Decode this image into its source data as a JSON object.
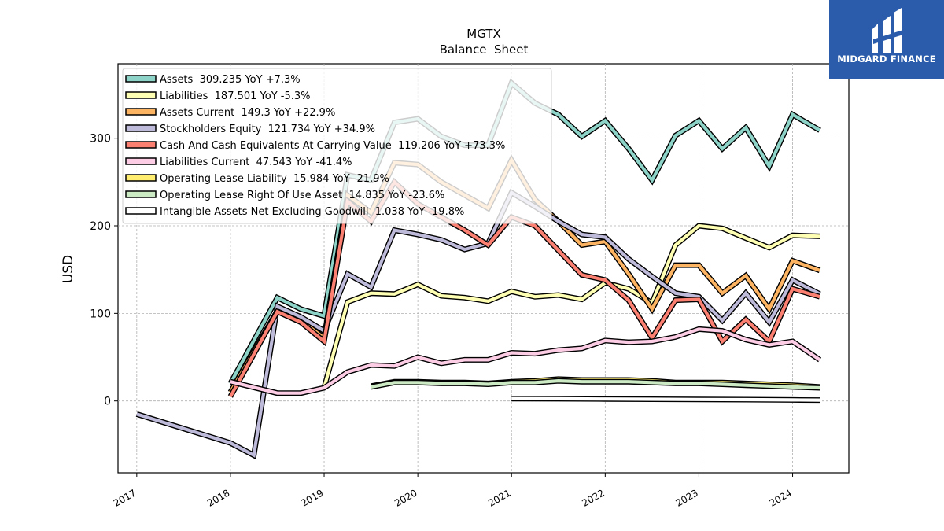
{
  "logo": {
    "text": "MIDGARD FINANCE",
    "bg_color": "#2a5cab"
  },
  "chart_data": {
    "type": "line",
    "title": "MGTX",
    "subtitle": "Balance  Sheet",
    "ylabel": "USD",
    "xlabel": "",
    "xlim": [
      2016.8,
      2024.6
    ],
    "ylim": [
      -82,
      385
    ],
    "yticks": [
      0,
      100,
      200,
      300
    ],
    "xticks": [
      2017,
      2018,
      2019,
      2020,
      2021,
      2022,
      2023,
      2024
    ],
    "grid": true,
    "legend_position": "top-left",
    "series": [
      {
        "name": "Assets",
        "legend": "Assets  309.235 YoY +7.3%",
        "color": "#8dd3c7",
        "x": [
          2018.0,
          2018.5,
          2018.75,
          2019.0,
          2019.25,
          2019.5,
          2019.75,
          2020.0,
          2020.25,
          2020.5,
          2020.75,
          2021.0,
          2021.25,
          2021.5,
          2021.75,
          2022.0,
          2022.25,
          2022.5,
          2022.75,
          2023.0,
          2023.25,
          2023.5,
          2023.75,
          2024.0,
          2024.29
        ],
        "y": [
          20,
          118,
          105,
          97,
          258,
          252,
          318,
          322,
          302,
          292,
          292,
          363,
          340,
          327,
          302,
          320,
          288,
          252,
          303,
          320,
          288,
          312,
          268,
          327,
          309
        ]
      },
      {
        "name": "Liabilities",
        "legend": "Liabilities  187.501 YoY -5.3%",
        "color": "#ffffb3",
        "x": [
          2019.0,
          2019.25,
          2019.5,
          2019.75,
          2020.0,
          2020.25,
          2020.5,
          2020.75,
          2021.0,
          2021.25,
          2021.5,
          2021.75,
          2022.0,
          2022.25,
          2022.5,
          2022.75,
          2023.0,
          2023.25,
          2023.5,
          2023.75,
          2024.0,
          2024.29
        ],
        "y": [
          15,
          113,
          123,
          122,
          133,
          120,
          118,
          114,
          125,
          119,
          121,
          116,
          135,
          128,
          112,
          178,
          200,
          197,
          186,
          175,
          189,
          188
        ]
      },
      {
        "name": "Assets Current",
        "legend": "Assets Current  149.3 YoY +22.9%",
        "color": "#fdb462",
        "x": [
          2018.0,
          2018.5,
          2018.75,
          2019.0,
          2019.25,
          2019.5,
          2019.75,
          2020.0,
          2020.25,
          2020.5,
          2020.75,
          2021.0,
          2021.25,
          2021.5,
          2021.75,
          2022.0,
          2022.25,
          2022.5,
          2022.75,
          2023.0,
          2023.25,
          2023.5,
          2023.75,
          2024.0,
          2024.29
        ],
        "y": [
          10,
          103,
          92,
          72,
          235,
          215,
          272,
          270,
          250,
          235,
          220,
          275,
          230,
          205,
          178,
          182,
          145,
          105,
          155,
          155,
          123,
          143,
          105,
          160,
          149
        ]
      },
      {
        "name": "Stockholders Equity",
        "legend": "Stockholders Equity  121.734 YoY +34.9%",
        "color": "#bebada",
        "x": [
          2017.0,
          2018.0,
          2018.25,
          2018.5,
          2018.75,
          2019.0,
          2019.25,
          2019.5,
          2019.75,
          2020.0,
          2020.25,
          2020.5,
          2020.75,
          2021.0,
          2021.25,
          2021.5,
          2021.75,
          2022.0,
          2022.25,
          2022.5,
          2022.75,
          2023.0,
          2023.25,
          2023.5,
          2023.75,
          2024.0,
          2024.29
        ],
        "y": [
          -15,
          -48,
          -62,
          108,
          96,
          80,
          145,
          130,
          195,
          190,
          184,
          173,
          180,
          238,
          222,
          205,
          190,
          187,
          162,
          142,
          123,
          119,
          92,
          123,
          90,
          138,
          122
        ]
      },
      {
        "name": "Cash And Cash Equivalents At Carrying Value",
        "legend": "Cash And Cash Equivalents At Carrying Value  119.206 YoY +73.3%",
        "color": "#fb8072",
        "x": [
          2018.0,
          2018.5,
          2018.75,
          2019.0,
          2019.25,
          2019.5,
          2019.75,
          2020.0,
          2020.25,
          2020.5,
          2020.75,
          2021.0,
          2021.25,
          2021.5,
          2021.75,
          2022.0,
          2022.25,
          2022.5,
          2022.75,
          2023.0,
          2023.25,
          2023.5,
          2023.75,
          2024.0,
          2024.29
        ],
        "y": [
          5,
          102,
          90,
          68,
          228,
          205,
          250,
          225,
          210,
          195,
          178,
          210,
          200,
          172,
          144,
          138,
          115,
          72,
          115,
          116,
          68,
          93,
          68,
          128,
          119
        ]
      },
      {
        "name": "Liabilities Current",
        "legend": "Liabilities Current  47.543 YoY -41.4%",
        "color": "#fccde5",
        "x": [
          2018.0,
          2018.5,
          2018.75,
          2019.0,
          2019.25,
          2019.5,
          2019.75,
          2020.0,
          2020.25,
          2020.5,
          2020.75,
          2021.0,
          2021.25,
          2021.5,
          2021.75,
          2022.0,
          2022.25,
          2022.5,
          2022.75,
          2023.0,
          2023.25,
          2023.5,
          2023.75,
          2024.0,
          2024.29
        ],
        "y": [
          22,
          9,
          9,
          15,
          33,
          41,
          40,
          50,
          43,
          47,
          47,
          55,
          54,
          58,
          60,
          69,
          67,
          68,
          73,
          82,
          80,
          70,
          64,
          68,
          47
        ]
      },
      {
        "name": "Operating Lease Liability",
        "legend": "Operating Lease Liability  15.984 YoY -21.9%",
        "color": "#ffed6f",
        "x": [
          2019.5,
          2019.75,
          2020.0,
          2020.25,
          2020.5,
          2020.75,
          2021.0,
          2021.25,
          2021.5,
          2021.75,
          2022.0,
          2022.25,
          2022.5,
          2022.75,
          2023.0,
          2023.25,
          2023.5,
          2023.75,
          2024.0,
          2024.29
        ],
        "y": [
          17,
          22,
          22,
          21,
          21,
          20,
          22,
          23,
          25,
          24,
          24,
          24,
          23,
          21,
          21,
          21,
          20,
          19,
          18,
          16
        ]
      },
      {
        "name": "Operating Lease Right Of Use Asset",
        "legend": "Operating Lease Right Of Use Asset  14.835 YoY -23.6%",
        "color": "#ccebc5",
        "x": [
          2019.5,
          2019.75,
          2020.0,
          2020.25,
          2020.5,
          2020.75,
          2021.0,
          2021.25,
          2021.5,
          2021.75,
          2022.0,
          2022.25,
          2022.5,
          2022.75,
          2023.0,
          2023.25,
          2023.5,
          2023.75,
          2024.0,
          2024.29
        ],
        "y": [
          16,
          21,
          21,
          20,
          20,
          19,
          21,
          21,
          23,
          22,
          22,
          22,
          21,
          20,
          20,
          19,
          18,
          17,
          16,
          15
        ]
      },
      {
        "name": "Intangible Assets Net Excluding Goodwill",
        "legend": "Intangible Assets Net Excluding Goodwill  1.038 YoY -19.8%",
        "color": "#ffffff",
        "x": [
          2021.0,
          2021.5,
          2022.0,
          2022.5,
          2023.0,
          2023.5,
          2024.0,
          2024.29
        ],
        "y": [
          2.7,
          2.5,
          2.2,
          2.0,
          1.7,
          1.5,
          1.2,
          1.0
        ]
      }
    ]
  }
}
